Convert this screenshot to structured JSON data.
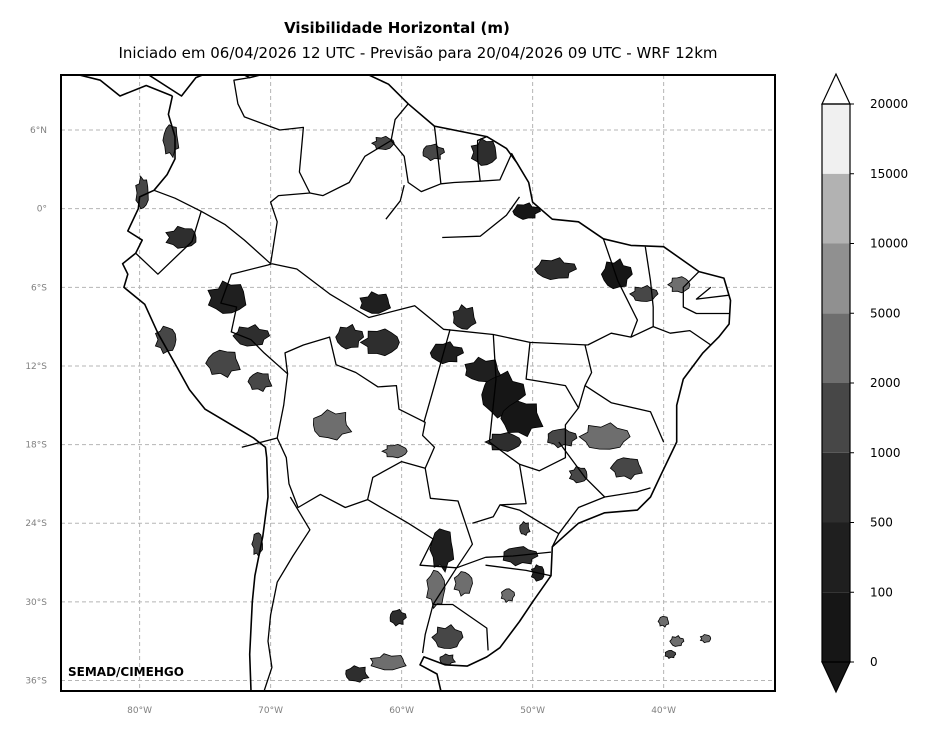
{
  "title": "Visibilidade Horizontal (m)",
  "subtitle": "Iniciado em 06/04/2026 12 UTC - Previsão para 20/04/2026 09 UTC - WRF 12km",
  "credit": "SEMAD/CIMEHGO",
  "map": {
    "projection": "plate-carree",
    "lon_range": [
      -86,
      -31.5
    ],
    "lat_range": [
      -36.8,
      10.2
    ],
    "gridlines": true,
    "lon_ticks": [
      {
        "value": -80,
        "label": "80°W"
      },
      {
        "value": -70,
        "label": "70°W"
      },
      {
        "value": -60,
        "label": "60°W"
      },
      {
        "value": -50,
        "label": "50°W"
      },
      {
        "value": -40,
        "label": "40°W"
      }
    ],
    "lat_ticks": [
      {
        "value": 6,
        "label": "6°N"
      },
      {
        "value": 0,
        "label": "0°"
      },
      {
        "value": -6,
        "label": "6°S"
      },
      {
        "value": -12,
        "label": "12°S"
      },
      {
        "value": -18,
        "label": "18°S"
      },
      {
        "value": -24,
        "label": "24°S"
      },
      {
        "value": -30,
        "label": "30°S"
      },
      {
        "value": -36,
        "label": "36°S"
      }
    ]
  },
  "colorbar": {
    "levels": [
      0,
      100,
      500,
      1000,
      2000,
      5000,
      10000,
      15000,
      20000
    ],
    "level_labels": [
      "0",
      "100",
      "500",
      "1000",
      "2000",
      "5000",
      "10000",
      "15000",
      "20000"
    ],
    "colors": [
      "#161616",
      "#1f1f1f",
      "#2e2e2e",
      "#474747",
      "#6e6e6e",
      "#909090",
      "#b2b2b2",
      "#f0f0f0"
    ],
    "extend": "both",
    "under_color": "#161616",
    "over_color": "#ffffff"
  },
  "fog_regions": [
    {
      "lon": -52.3,
      "lat": -14.2,
      "rx": 1.6,
      "ry": 1.7,
      "color": "#161616"
    },
    {
      "lon": -50.8,
      "lat": -16.0,
      "rx": 1.6,
      "ry": 1.3,
      "color": "#161616"
    },
    {
      "lon": -53.8,
      "lat": -12.3,
      "rx": 1.4,
      "ry": 0.9,
      "color": "#1f1f1f"
    },
    {
      "lon": -56.6,
      "lat": -11.0,
      "rx": 1.2,
      "ry": 0.8,
      "color": "#1f1f1f"
    },
    {
      "lon": -61.6,
      "lat": -10.2,
      "rx": 1.4,
      "ry": 1.0,
      "color": "#2e2e2e"
    },
    {
      "lon": -64.0,
      "lat": -9.8,
      "rx": 1.0,
      "ry": 0.9,
      "color": "#2e2e2e"
    },
    {
      "lon": -62.0,
      "lat": -7.2,
      "rx": 1.2,
      "ry": 0.8,
      "color": "#1f1f1f"
    },
    {
      "lon": -55.2,
      "lat": -8.3,
      "rx": 0.9,
      "ry": 0.9,
      "color": "#2e2e2e"
    },
    {
      "lon": -48.3,
      "lat": -4.6,
      "rx": 1.5,
      "ry": 0.8,
      "color": "#2e2e2e"
    },
    {
      "lon": -43.6,
      "lat": -5.0,
      "rx": 1.1,
      "ry": 1.1,
      "color": "#161616"
    },
    {
      "lon": -41.5,
      "lat": -6.5,
      "rx": 1.0,
      "ry": 0.6,
      "color": "#474747"
    },
    {
      "lon": -38.8,
      "lat": -5.8,
      "rx": 0.8,
      "ry": 0.6,
      "color": "#6e6e6e"
    },
    {
      "lon": -50.5,
      "lat": -0.2,
      "rx": 1.0,
      "ry": 0.6,
      "color": "#161616"
    },
    {
      "lon": -53.7,
      "lat": 4.3,
      "rx": 1.0,
      "ry": 1.0,
      "color": "#2e2e2e"
    },
    {
      "lon": -57.6,
      "lat": 4.3,
      "rx": 0.8,
      "ry": 0.6,
      "color": "#474747"
    },
    {
      "lon": -61.4,
      "lat": 5.0,
      "rx": 0.8,
      "ry": 0.5,
      "color": "#474747"
    },
    {
      "lon": -76.8,
      "lat": -2.2,
      "rx": 1.2,
      "ry": 0.8,
      "color": "#2e2e2e"
    },
    {
      "lon": -73.3,
      "lat": -6.8,
      "rx": 1.5,
      "ry": 1.2,
      "color": "#1f1f1f"
    },
    {
      "lon": -71.5,
      "lat": -9.7,
      "rx": 1.3,
      "ry": 0.8,
      "color": "#2e2e2e"
    },
    {
      "lon": -73.6,
      "lat": -11.8,
      "rx": 1.3,
      "ry": 1.0,
      "color": "#474747"
    },
    {
      "lon": -70.8,
      "lat": -13.2,
      "rx": 0.9,
      "ry": 0.7,
      "color": "#474747"
    },
    {
      "lon": -78.0,
      "lat": -10.0,
      "rx": 0.8,
      "ry": 1.0,
      "color": "#474747"
    },
    {
      "lon": -79.8,
      "lat": 1.2,
      "rx": 0.5,
      "ry": 1.2,
      "color": "#474747"
    },
    {
      "lon": -77.6,
      "lat": 5.2,
      "rx": 0.6,
      "ry": 1.2,
      "color": "#474747"
    },
    {
      "lon": -65.3,
      "lat": -16.5,
      "rx": 1.5,
      "ry": 1.1,
      "color": "#6e6e6e"
    },
    {
      "lon": -60.5,
      "lat": -18.5,
      "rx": 0.9,
      "ry": 0.5,
      "color": "#6e6e6e"
    },
    {
      "lon": -52.2,
      "lat": -17.8,
      "rx": 1.3,
      "ry": 0.7,
      "color": "#2e2e2e"
    },
    {
      "lon": -47.8,
      "lat": -17.5,
      "rx": 1.1,
      "ry": 0.7,
      "color": "#474747"
    },
    {
      "lon": -44.5,
      "lat": -17.4,
      "rx": 1.8,
      "ry": 1.0,
      "color": "#6e6e6e"
    },
    {
      "lon": -42.8,
      "lat": -19.8,
      "rx": 1.2,
      "ry": 0.8,
      "color": "#474747"
    },
    {
      "lon": -46.5,
      "lat": -20.3,
      "rx": 0.7,
      "ry": 0.6,
      "color": "#474747"
    },
    {
      "lon": -50.6,
      "lat": -24.4,
      "rx": 0.4,
      "ry": 0.5,
      "color": "#474747"
    },
    {
      "lon": -56.9,
      "lat": -26.0,
      "rx": 0.9,
      "ry": 1.6,
      "color": "#1f1f1f"
    },
    {
      "lon": -57.4,
      "lat": -29.0,
      "rx": 0.7,
      "ry": 1.4,
      "color": "#6e6e6e"
    },
    {
      "lon": -55.3,
      "lat": -28.6,
      "rx": 0.7,
      "ry": 0.9,
      "color": "#6e6e6e"
    },
    {
      "lon": -51.0,
      "lat": -26.5,
      "rx": 1.3,
      "ry": 0.7,
      "color": "#2e2e2e"
    },
    {
      "lon": -49.6,
      "lat": -27.8,
      "rx": 0.5,
      "ry": 0.6,
      "color": "#1f1f1f"
    },
    {
      "lon": -51.9,
      "lat": -29.5,
      "rx": 0.5,
      "ry": 0.5,
      "color": "#6e6e6e"
    },
    {
      "lon": -60.3,
      "lat": -31.2,
      "rx": 0.6,
      "ry": 0.6,
      "color": "#2e2e2e"
    },
    {
      "lon": -56.5,
      "lat": -32.7,
      "rx": 1.1,
      "ry": 0.9,
      "color": "#474747"
    },
    {
      "lon": -61.0,
      "lat": -34.6,
      "rx": 1.4,
      "ry": 0.6,
      "color": "#6e6e6e"
    },
    {
      "lon": -63.4,
      "lat": -35.5,
      "rx": 0.9,
      "ry": 0.6,
      "color": "#2e2e2e"
    },
    {
      "lon": -56.5,
      "lat": -34.4,
      "rx": 0.6,
      "ry": 0.4,
      "color": "#474747"
    },
    {
      "lon": -71.0,
      "lat": -25.6,
      "rx": 0.4,
      "ry": 0.9,
      "color": "#474747"
    },
    {
      "lon": -40.0,
      "lat": -31.5,
      "rx": 0.4,
      "ry": 0.4,
      "color": "#6e6e6e"
    },
    {
      "lon": -39.0,
      "lat": -33.0,
      "rx": 0.5,
      "ry": 0.4,
      "color": "#6e6e6e"
    },
    {
      "lon": -36.8,
      "lat": -32.8,
      "rx": 0.4,
      "ry": 0.3,
      "color": "#6e6e6e"
    },
    {
      "lon": -39.5,
      "lat": -34.0,
      "rx": 0.4,
      "ry": 0.3,
      "color": "#474747"
    }
  ],
  "coastline": [
    [
      -77.5,
      8.6
    ],
    [
      -79.5,
      9.4
    ],
    [
      -81.5,
      8.6
    ],
    [
      -83.0,
      9.8
    ],
    [
      -84.6,
      10.2
    ],
    [
      -79.3,
      10.2
    ],
    [
      -76.8,
      8.6
    ],
    [
      -75.7,
      10.0
    ],
    [
      -75.2,
      10.2
    ],
    [
      -72.0,
      10.2
    ],
    [
      -71.6,
      10.0
    ],
    [
      -70.8,
      10.2
    ],
    [
      -68.0,
      10.2
    ],
    [
      -64.0,
      10.2
    ],
    [
      -62.5,
      10.2
    ],
    [
      -61.0,
      9.5
    ],
    [
      -59.5,
      8.0
    ],
    [
      -57.5,
      6.3
    ],
    [
      -55.5,
      5.9
    ],
    [
      -53.5,
      5.5
    ],
    [
      -52.0,
      4.6
    ],
    [
      -51.2,
      3.5
    ],
    [
      -50.3,
      2.0
    ],
    [
      -50.0,
      0.5
    ],
    [
      -48.5,
      -0.8
    ],
    [
      -46.5,
      -1.0
    ],
    [
      -44.6,
      -2.3
    ],
    [
      -42.5,
      -2.8
    ],
    [
      -40.0,
      -2.9
    ],
    [
      -37.3,
      -4.8
    ],
    [
      -35.4,
      -5.3
    ],
    [
      -34.9,
      -7.0
    ],
    [
      -35.0,
      -8.8
    ],
    [
      -35.8,
      -9.8
    ],
    [
      -37.0,
      -11.0
    ],
    [
      -38.5,
      -13.0
    ],
    [
      -39.0,
      -15.0
    ],
    [
      -39.0,
      -17.8
    ],
    [
      -40.2,
      -20.3
    ],
    [
      -41.0,
      -22.0
    ],
    [
      -42.0,
      -23.0
    ],
    [
      -44.5,
      -23.2
    ],
    [
      -46.5,
      -24.0
    ],
    [
      -48.5,
      -25.8
    ],
    [
      -48.6,
      -28.0
    ],
    [
      -50.0,
      -30.0
    ],
    [
      -51.0,
      -31.5
    ],
    [
      -52.5,
      -33.5
    ],
    [
      -53.5,
      -34.2
    ],
    [
      -55.0,
      -34.9
    ],
    [
      -56.7,
      -34.8
    ],
    [
      -58.3,
      -34.2
    ],
    [
      -58.6,
      -34.8
    ],
    [
      -57.3,
      -35.5
    ],
    [
      -57.0,
      -36.8
    ]
  ],
  "west_coast": [
    [
      -71.5,
      -36.8
    ],
    [
      -71.6,
      -34.0
    ],
    [
      -71.5,
      -32.0
    ],
    [
      -71.4,
      -30.0
    ],
    [
      -71.2,
      -28.0
    ],
    [
      -70.6,
      -25.0
    ],
    [
      -70.2,
      -22.0
    ],
    [
      -70.3,
      -19.0
    ],
    [
      -70.4,
      -18.2
    ],
    [
      -71.3,
      -17.5
    ],
    [
      -72.3,
      -16.9
    ],
    [
      -75.0,
      -15.3
    ],
    [
      -76.2,
      -13.8
    ],
    [
      -77.2,
      -12.0
    ],
    [
      -78.6,
      -9.5
    ],
    [
      -79.6,
      -7.3
    ],
    [
      -81.2,
      -6.0
    ],
    [
      -80.9,
      -5.0
    ],
    [
      -81.3,
      -4.2
    ],
    [
      -80.3,
      -3.4
    ],
    [
      -79.8,
      -2.4
    ],
    [
      -80.9,
      -1.7
    ],
    [
      -80.1,
      0.0
    ],
    [
      -80.0,
      0.9
    ],
    [
      -78.9,
      1.4
    ],
    [
      -77.9,
      2.6
    ],
    [
      -77.3,
      3.8
    ],
    [
      -77.3,
      5.5
    ],
    [
      -77.8,
      7.2
    ],
    [
      -77.5,
      8.6
    ]
  ],
  "borders": [
    [
      [
        -72.2,
        -18.2
      ],
      [
        -69.5,
        -17.5
      ],
      [
        -69.0,
        -15.0
      ],
      [
        -68.7,
        -12.6
      ],
      [
        -70.5,
        -11.0
      ],
      [
        -71.5,
        -10.0
      ],
      [
        -73.0,
        -9.4
      ],
      [
        -72.6,
        -7.5
      ],
      [
        -73.8,
        -7.2
      ],
      [
        -73.0,
        -5.0
      ],
      [
        -70.2,
        -4.3
      ],
      [
        -69.9,
        -4.2
      ]
    ],
    [
      [
        -80.3,
        -3.4
      ],
      [
        -78.6,
        -5.0
      ],
      [
        -76.0,
        -2.5
      ],
      [
        -75.3,
        -0.2
      ],
      [
        -77.3,
        0.8
      ],
      [
        -78.9,
        1.4
      ]
    ],
    [
      [
        -75.3,
        -0.2
      ],
      [
        -73.5,
        -1.2
      ],
      [
        -72.0,
        -2.4
      ],
      [
        -70.0,
        -4.2
      ],
      [
        -69.5,
        -1.0
      ],
      [
        -70.0,
        0.5
      ],
      [
        -69.4,
        1.0
      ],
      [
        -67.0,
        1.2
      ],
      [
        -67.8,
        2.8
      ],
      [
        -67.5,
        6.2
      ],
      [
        -69.3,
        6.0
      ],
      [
        -72.0,
        7.0
      ],
      [
        -72.5,
        8.0
      ],
      [
        -72.8,
        9.8
      ],
      [
        -71.6,
        10.0
      ]
    ],
    [
      [
        -67.0,
        1.2
      ],
      [
        -66.0,
        1.0
      ],
      [
        -64.0,
        2.0
      ],
      [
        -62.8,
        4.0
      ],
      [
        -60.8,
        5.2
      ],
      [
        -60.5,
        6.8
      ],
      [
        -59.5,
        8.0
      ]
    ],
    [
      [
        -60.8,
        5.2
      ],
      [
        -59.8,
        4.0
      ],
      [
        -59.5,
        2.0
      ],
      [
        -58.5,
        1.3
      ],
      [
        -57.0,
        1.9
      ],
      [
        -56.0,
        2.0
      ],
      [
        -54.0,
        2.1
      ],
      [
        -52.5,
        2.2
      ],
      [
        -51.6,
        4.2
      ],
      [
        -51.2,
        3.5
      ]
    ],
    [
      [
        -57.0,
        1.9
      ],
      [
        -57.4,
        5.5
      ],
      [
        -57.5,
        6.3
      ]
    ],
    [
      [
        -54.0,
        2.1
      ],
      [
        -54.2,
        3.8
      ],
      [
        -54.2,
        5.2
      ],
      [
        -53.5,
        5.5
      ]
    ],
    [
      [
        -68.7,
        -12.6
      ],
      [
        -68.9,
        -11.0
      ],
      [
        -67.5,
        -10.4
      ],
      [
        -65.5,
        -9.8
      ],
      [
        -65.0,
        -11.9
      ],
      [
        -63.5,
        -12.5
      ],
      [
        -61.8,
        -13.6
      ],
      [
        -60.4,
        -13.5
      ],
      [
        -60.2,
        -15.3
      ],
      [
        -58.2,
        -16.3
      ],
      [
        -58.4,
        -17.3
      ],
      [
        -57.5,
        -18.2
      ],
      [
        -58.2,
        -19.8
      ],
      [
        -60.0,
        -19.3
      ],
      [
        -62.2,
        -20.5
      ],
      [
        -62.6,
        -22.2
      ],
      [
        -64.3,
        -22.8
      ],
      [
        -66.2,
        -21.8
      ],
      [
        -67.9,
        -22.8
      ],
      [
        -68.6,
        -21.0
      ],
      [
        -68.8,
        -19.0
      ],
      [
        -69.5,
        -17.5
      ]
    ],
    [
      [
        -58.2,
        -19.8
      ],
      [
        -57.8,
        -22.1
      ],
      [
        -55.7,
        -22.3
      ],
      [
        -54.6,
        -25.6
      ],
      [
        -55.8,
        -27.4
      ],
      [
        -58.6,
        -27.2
      ],
      [
        -57.6,
        -25.2
      ],
      [
        -59.5,
        -24.0
      ],
      [
        -62.6,
        -22.2
      ]
    ],
    [
      [
        -68.5,
        -22.0
      ],
      [
        -67.0,
        -24.5
      ],
      [
        -68.3,
        -26.5
      ],
      [
        -69.5,
        -28.5
      ],
      [
        -70.0,
        -31.0
      ],
      [
        -70.2,
        -33.0
      ],
      [
        -69.9,
        -35.0
      ],
      [
        -70.5,
        -36.8
      ]
    ],
    [
      [
        -53.6,
        -26.6
      ],
      [
        -55.8,
        -27.4
      ],
      [
        -57.6,
        -30.2
      ],
      [
        -56.1,
        -30.2
      ],
      [
        -53.5,
        -32.0
      ],
      [
        -53.4,
        -33.7
      ]
    ],
    [
      [
        -57.6,
        -30.2
      ],
      [
        -58.2,
        -32.5
      ],
      [
        -58.4,
        -33.9
      ]
    ],
    [
      [
        -69.9,
        -4.2
      ],
      [
        -68.0,
        -4.6
      ],
      [
        -65.5,
        -6.5
      ],
      [
        -62.5,
        -8.3
      ],
      [
        -59.0,
        -7.4
      ],
      [
        -56.8,
        -9.2
      ],
      [
        -53.0,
        -9.6
      ],
      [
        -50.2,
        -10.2
      ],
      [
        -45.8,
        -10.4
      ]
    ],
    [
      [
        -61.2,
        -0.8
      ],
      [
        -60.1,
        0.6
      ],
      [
        -59.8,
        1.8
      ]
    ],
    [
      [
        -56.9,
        -2.2
      ],
      [
        -54.0,
        -2.1
      ],
      [
        -52.0,
        -0.5
      ],
      [
        -51.0,
        0.9
      ]
    ],
    [
      [
        -56.3,
        -9.2
      ],
      [
        -57.5,
        -13.5
      ],
      [
        -58.3,
        -16.3
      ]
    ],
    [
      [
        -53.0,
        -9.6
      ],
      [
        -52.8,
        -13.0
      ],
      [
        -53.3,
        -17.8
      ],
      [
        -51.0,
        -19.5
      ],
      [
        -50.5,
        -22.5
      ],
      [
        -52.5,
        -22.6
      ],
      [
        -53.0,
        -23.5
      ],
      [
        -54.6,
        -24.0
      ]
    ],
    [
      [
        -50.2,
        -10.2
      ],
      [
        -50.5,
        -13.0
      ],
      [
        -47.5,
        -13.5
      ],
      [
        -46.5,
        -15.2
      ],
      [
        -47.5,
        -16.5
      ],
      [
        -47.5,
        -19.0
      ],
      [
        -49.5,
        -20.0
      ],
      [
        -51.0,
        -19.5
      ]
    ],
    [
      [
        -46.5,
        -15.2
      ],
      [
        -46.0,
        -13.5
      ],
      [
        -44.0,
        -14.8
      ],
      [
        -41.0,
        -15.5
      ],
      [
        -40.0,
        -17.8
      ]
    ],
    [
      [
        -46.0,
        -10.4
      ],
      [
        -45.5,
        -12.5
      ],
      [
        -46.0,
        -13.5
      ]
    ],
    [
      [
        -45.8,
        -10.4
      ],
      [
        -44.0,
        -9.5
      ],
      [
        -42.5,
        -9.8
      ],
      [
        -40.8,
        -9.0
      ],
      [
        -39.5,
        -9.5
      ],
      [
        -38.0,
        -9.3
      ],
      [
        -36.4,
        -10.4
      ]
    ],
    [
      [
        -44.6,
        -2.3
      ],
      [
        -43.5,
        -5.5
      ],
      [
        -42.0,
        -8.5
      ],
      [
        -42.5,
        -9.8
      ]
    ],
    [
      [
        -41.4,
        -2.9
      ],
      [
        -41.0,
        -5.5
      ],
      [
        -40.8,
        -7.5
      ],
      [
        -40.8,
        -9.0
      ]
    ],
    [
      [
        -37.3,
        -4.8
      ],
      [
        -38.5,
        -6.0
      ],
      [
        -38.5,
        -7.5
      ],
      [
        -37.5,
        -8.0
      ],
      [
        -35.0,
        -8.0
      ]
    ],
    [
      [
        -36.4,
        -6.0
      ],
      [
        -37.5,
        -6.9
      ],
      [
        -35.0,
        -6.6
      ]
    ],
    [
      [
        -48.0,
        -17.8
      ],
      [
        -46.0,
        -20.5
      ],
      [
        -44.5,
        -22.0
      ],
      [
        -42.0,
        -21.6
      ],
      [
        -41.0,
        -21.3
      ]
    ],
    [
      [
        -44.5,
        -22.0
      ],
      [
        -46.5,
        -22.8
      ],
      [
        -48.0,
        -24.8
      ],
      [
        -48.5,
        -25.8
      ]
    ],
    [
      [
        -48.0,
        -24.8
      ],
      [
        -51.0,
        -23.0
      ],
      [
        -52.5,
        -22.6
      ]
    ],
    [
      [
        -48.6,
        -26.2
      ],
      [
        -51.5,
        -26.5
      ],
      [
        -53.6,
        -26.6
      ]
    ],
    [
      [
        -48.6,
        -28.0
      ],
      [
        -50.5,
        -27.6
      ],
      [
        -53.6,
        -27.2
      ]
    ]
  ]
}
